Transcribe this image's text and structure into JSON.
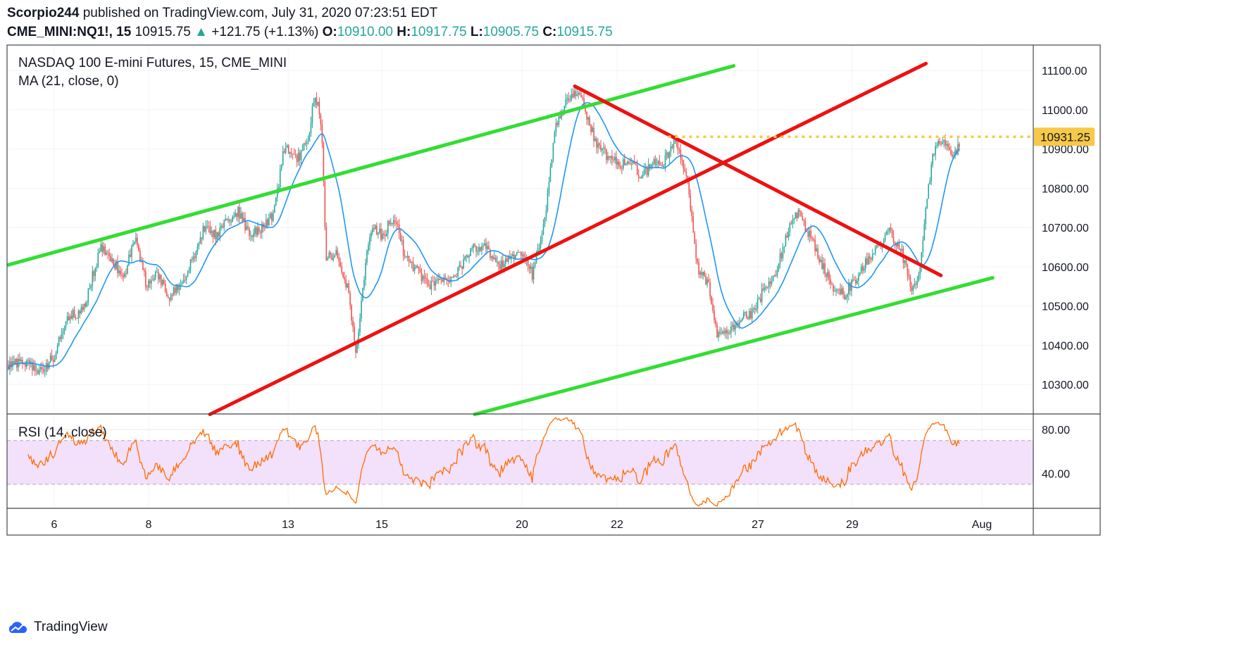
{
  "header": {
    "author": "Scorpio244",
    "published_text": "published on TradingView.com, July 31, 2020 07:23:51 EDT",
    "symbol": "CME_MINI:NQ1!, 15",
    "last": "10915.75",
    "change_icon": "triangle-up-icon",
    "change": "+121.75 (+1.13%)",
    "open_label": "O:",
    "open": "10910.00",
    "high_label": "H:",
    "high": "10917.75",
    "low_label": "L:",
    "low": "10905.75",
    "close_label": "C:",
    "close": "10915.75"
  },
  "legend": {
    "title": "NASDAQ 100 E-mini Futures, 15, CME_MINI",
    "ma": "MA (21, close, 0)",
    "rsi": "RSI (14, close)"
  },
  "price_label": "10931.25",
  "footer": {
    "brand": "TradingView",
    "logo_icon": "tradingview-cloud-icon"
  },
  "colors": {
    "up_candle": "#26a69a",
    "down_candle": "#ef5350",
    "ma": "#2196f3",
    "green_line": "#33dd33",
    "red_line": "#ee1111",
    "rsi": "#ff6d00",
    "rsi_band": "#f3e0fb",
    "level": "#f7c948"
  },
  "chart_data": [
    {
      "type": "candlestick",
      "title": "NASDAQ 100 E-mini Futures, 15, CME_MINI",
      "indicator": "MA (21, close, 0)",
      "y_ticks": [
        10300,
        10400,
        10500,
        10600,
        10700,
        10800,
        10900,
        11000,
        11100
      ],
      "y_tick_labels": [
        "10300.00",
        "10400.00",
        "10500.00",
        "10600.00",
        "10700.00",
        "10800.00",
        "10900.00",
        "11000.00",
        "11100.00"
      ],
      "ylim": [
        10225,
        11165
      ],
      "x_tick_labels": [
        "6",
        "8",
        "13",
        "15",
        "20",
        "22",
        "27",
        "29",
        "Aug"
      ],
      "price_path": [
        [
          0,
          10350
        ],
        [
          1.5,
          10355
        ],
        [
          2.5,
          10330
        ],
        [
          4,
          10370
        ],
        [
          5,
          10470
        ],
        [
          6.5,
          10490
        ],
        [
          8,
          10650
        ],
        [
          9,
          10620
        ],
        [
          10,
          10570
        ],
        [
          11,
          10680
        ],
        [
          12,
          10550
        ],
        [
          13,
          10580
        ],
        [
          14,
          10520
        ],
        [
          15,
          10560
        ],
        [
          16,
          10620
        ],
        [
          17,
          10700
        ],
        [
          18,
          10680
        ],
        [
          19,
          10720
        ],
        [
          20,
          10740
        ],
        [
          21,
          10680
        ],
        [
          22,
          10700
        ],
        [
          23,
          10730
        ],
        [
          24,
          10910
        ],
        [
          25,
          10870
        ],
        [
          26,
          10920
        ],
        [
          26.6,
          11050
        ],
        [
          27.2,
          10960
        ],
        [
          27.6,
          10620
        ],
        [
          28.5,
          10630
        ],
        [
          29.5,
          10540
        ],
        [
          30.2,
          10380
        ],
        [
          30.8,
          10560
        ],
        [
          31.5,
          10700
        ],
        [
          32.5,
          10680
        ],
        [
          33.5,
          10730
        ],
        [
          34.5,
          10620
        ],
        [
          35.5,
          10590
        ],
        [
          36.5,
          10550
        ],
        [
          37.5,
          10560
        ],
        [
          38.5,
          10570
        ],
        [
          39.5,
          10610
        ],
        [
          40.5,
          10650
        ],
        [
          41.5,
          10650
        ],
        [
          42.5,
          10600
        ],
        [
          43.5,
          10620
        ],
        [
          44.5,
          10640
        ],
        [
          45.5,
          10580
        ],
        [
          46.5,
          10700
        ],
        [
          47.5,
          10950
        ],
        [
          48.5,
          11020
        ],
        [
          49.3,
          11045
        ],
        [
          50,
          11010
        ],
        [
          51,
          10920
        ],
        [
          52,
          10880
        ],
        [
          53,
          10860
        ],
        [
          54,
          10870
        ],
        [
          55,
          10830
        ],
        [
          56,
          10860
        ],
        [
          57,
          10870
        ],
        [
          58,
          10920
        ],
        [
          59,
          10820
        ],
        [
          59.8,
          10600
        ],
        [
          60.8,
          10560
        ],
        [
          61.6,
          10420
        ],
        [
          62.6,
          10440
        ],
        [
          63.6,
          10470
        ],
        [
          64.6,
          10480
        ],
        [
          65.6,
          10540
        ],
        [
          66.6,
          10580
        ],
        [
          67.6,
          10680
        ],
        [
          68.6,
          10740
        ],
        [
          69.6,
          10680
        ],
        [
          70.6,
          10610
        ],
        [
          71.6,
          10550
        ],
        [
          72.6,
          10530
        ],
        [
          73.6,
          10570
        ],
        [
          74.6,
          10620
        ],
        [
          75.6,
          10650
        ],
        [
          76.6,
          10690
        ],
        [
          77.6,
          10640
        ],
        [
          78.4,
          10540
        ],
        [
          79,
          10560
        ],
        [
          79.6,
          10720
        ],
        [
          80.3,
          10890
        ],
        [
          81,
          10920
        ],
        [
          82,
          10880
        ],
        [
          82.6,
          10910
        ]
      ]
    },
    {
      "type": "line",
      "title": "RSI (14, close)",
      "y_ticks": [
        40,
        80
      ],
      "y_tick_labels": [
        "40.00",
        "80.00"
      ],
      "ylim": [
        8,
        93
      ],
      "band": [
        30,
        70
      ],
      "x_tick_labels": [
        "6",
        "8",
        "13",
        "15",
        "20",
        "22",
        "27",
        "29",
        "Aug"
      ]
    }
  ]
}
